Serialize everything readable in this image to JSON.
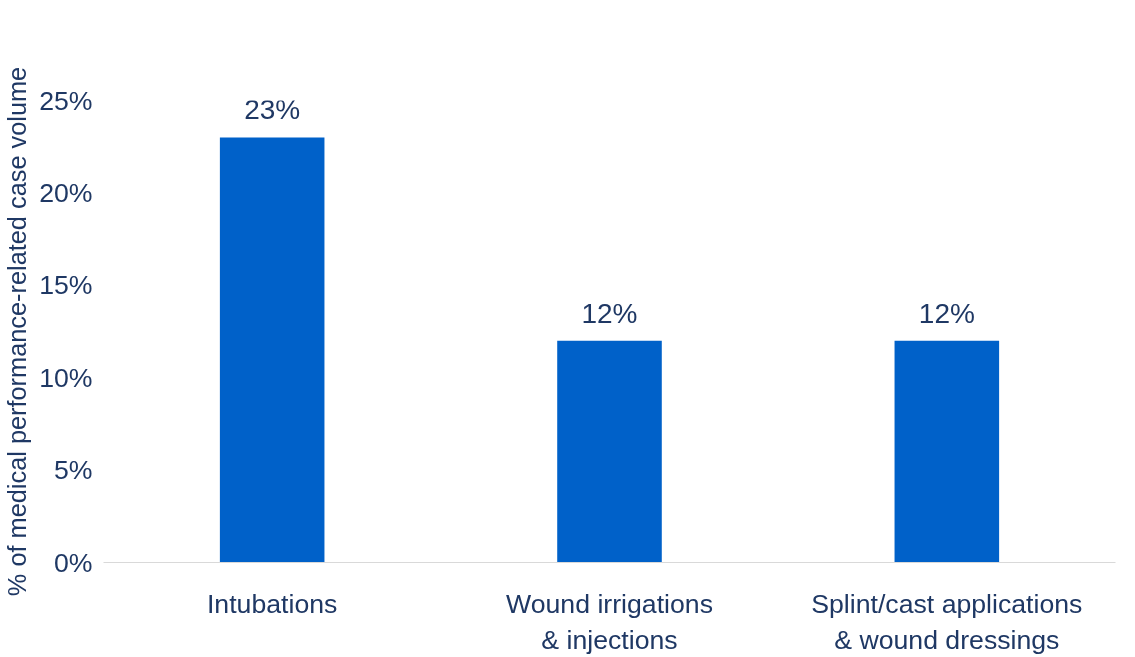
{
  "chart_data": {
    "type": "bar",
    "ylabel": "% of medical performance-related case volume",
    "categories": [
      "Intubations",
      "Wound irrigations\n& injections",
      "Splint/cast applications\n& wound dressings"
    ],
    "values": [
      23,
      12,
      12
    ],
    "color": "#0061c9",
    "value_labels": [
      "23%",
      "12%",
      "12%"
    ],
    "ylim": [
      0,
      25
    ],
    "yticks": [
      {
        "value": 0,
        "label": "0%"
      },
      {
        "value": 5,
        "label": "5%"
      },
      {
        "value": 10,
        "label": "10%"
      },
      {
        "value": 15,
        "label": "15%"
      },
      {
        "value": 20,
        "label": "20%"
      },
      {
        "value": 25,
        "label": "25%"
      }
    ],
    "grid": false
  }
}
